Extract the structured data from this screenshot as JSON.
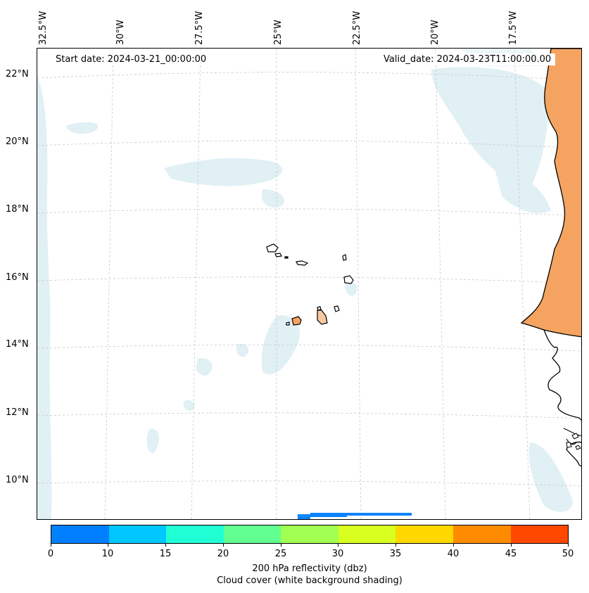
{
  "map": {
    "start_date": "Start date: 2024-03-21_00:00:00",
    "valid_date": "Valid_date: 2024-03-23T11:00:00.00",
    "lon_labels": [
      "32.5°W",
      "30°W",
      "27.5°W",
      "25°W",
      "22.5°W",
      "20°W",
      "17.5°W"
    ],
    "lat_labels": [
      "22°N",
      "20°N",
      "18°N",
      "16°N",
      "14°N",
      "12°N",
      "10°N"
    ],
    "land_color": "#f4a460",
    "cloud_color": "#d6ebf2",
    "reflectivity_color": "#0a84ff",
    "coast_color": "#000000"
  },
  "colorbar": {
    "ticks": [
      "0",
      "10",
      "15",
      "20",
      "25",
      "30",
      "35",
      "40",
      "45",
      "50"
    ],
    "colors": [
      "#0080ff",
      "#00c8ff",
      "#20ffd4",
      "#60ff90",
      "#a0ff50",
      "#d8ff20",
      "#ffd800",
      "#ff8c00",
      "#ff4800"
    ],
    "label_line1": "200 hPa reflectivity (dbz)",
    "label_line2": "Cloud cover (white background shading)"
  }
}
